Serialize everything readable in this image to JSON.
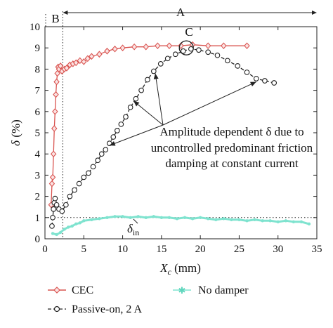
{
  "chart_data": {
    "type": "line",
    "title": "",
    "xlabel_symbol": "X",
    "xlabel_sub": "c",
    "xlabel_unit": "(mm)",
    "ylabel_symbol": "δ",
    "ylabel_unit": "(%)",
    "xlim": [
      0,
      35
    ],
    "ylim": [
      0,
      10
    ],
    "xticks": [
      "0",
      "5",
      "10",
      "15",
      "20",
      "25",
      "30",
      "35"
    ],
    "yticks": [
      "0",
      "1",
      "2",
      "3",
      "4",
      "5",
      "6",
      "7",
      "8",
      "9",
      "10"
    ],
    "grid": false,
    "legend_position": "bottom",
    "annotations": {
      "region_A": "A",
      "region_B": "B",
      "point_C": "C",
      "note_lines": [
        "Amplitude dependent δ due to",
        "uncontrolled predominant friction",
        "damping at constant current"
      ],
      "delta_in_symbol": "δ",
      "delta_in_sub": "in"
    },
    "reference_line": {
      "y": 1,
      "style": "dotted"
    },
    "series": [
      {
        "name": "CEC",
        "color": "#d9534f",
        "marker": "diamond",
        "x": [
          0.8,
          0.9,
          1.0,
          1.1,
          1.2,
          1.3,
          1.4,
          1.5,
          1.6,
          1.7,
          1.8,
          2.0,
          2.2,
          2.5,
          2.8,
          3.2,
          3.6,
          4.0,
          4.5,
          5.0,
          5.5,
          6.0,
          7.0,
          8.0,
          9.0,
          10.0,
          11.5,
          13,
          14.5,
          16,
          17.5,
          19,
          21,
          23,
          26
        ],
        "y": [
          1.6,
          2.6,
          2.9,
          4.0,
          5.2,
          6.0,
          6.8,
          7.4,
          7.8,
          8.1,
          8.0,
          8.15,
          7.9,
          8.0,
          8.05,
          8.2,
          8.25,
          8.3,
          8.4,
          8.35,
          8.5,
          8.6,
          8.7,
          8.85,
          8.95,
          9.0,
          9.05,
          9.05,
          9.1,
          9.1,
          9.1,
          9.15,
          9.1,
          9.1,
          9.1
        ]
      },
      {
        "name": "Passive-on, 2 A",
        "color": "#222222",
        "marker": "circle",
        "x": [
          0.9,
          1.0,
          1.1,
          1.2,
          1.3,
          1.5,
          1.8,
          2.2,
          2.7,
          3.2,
          3.8,
          4.4,
          5.0,
          5.6,
          6.2,
          6.8,
          7.3,
          7.8,
          8.3,
          8.8,
          9.3,
          9.8,
          10.4,
          11.0,
          11.7,
          12.4,
          13.2,
          14.0,
          14.9,
          15.8,
          16.8,
          17.8,
          18.8,
          19.8,
          21.0,
          22.2,
          23.5,
          24.8,
          26.0,
          27.2,
          28.3,
          29.5
        ],
        "y": [
          0.6,
          1.0,
          1.4,
          1.7,
          1.9,
          1.6,
          1.4,
          1.3,
          1.6,
          2.0,
          2.3,
          2.6,
          2.9,
          3.1,
          3.4,
          3.7,
          4.0,
          4.2,
          4.5,
          4.8,
          5.1,
          5.4,
          5.75,
          6.2,
          6.6,
          7.0,
          7.5,
          7.9,
          8.25,
          8.5,
          8.7,
          8.85,
          8.95,
          8.9,
          8.8,
          8.65,
          8.4,
          8.15,
          7.85,
          7.55,
          7.45,
          7.35
        ]
      },
      {
        "name": "No damper",
        "color": "#7fe3cf",
        "marker": "star",
        "x": [
          1.0,
          1.5,
          2.0,
          2.5,
          3.0,
          3.5,
          4.0,
          4.5,
          5.0,
          6.0,
          7.0,
          8.0,
          9.0,
          10.0,
          11.0,
          12.0,
          13.0,
          14.0,
          15.0,
          16.0,
          17.0,
          18.0,
          19.0,
          20.0,
          21.0,
          22.0,
          23.0,
          24.0,
          25.0,
          26.0,
          27.0,
          28.0,
          29.0,
          30.0,
          31.0,
          32.0,
          33.0,
          34.0
        ],
        "y": [
          0.25,
          0.2,
          0.3,
          0.45,
          0.55,
          0.6,
          0.7,
          0.75,
          0.85,
          0.9,
          0.95,
          1.0,
          1.05,
          1.05,
          1.0,
          1.05,
          1.0,
          1.05,
          1.0,
          1.0,
          0.95,
          1.0,
          0.95,
          1.0,
          0.95,
          0.9,
          0.95,
          0.9,
          0.9,
          0.85,
          0.9,
          0.85,
          0.85,
          0.8,
          0.85,
          0.8,
          0.8,
          0.7
        ]
      }
    ]
  }
}
